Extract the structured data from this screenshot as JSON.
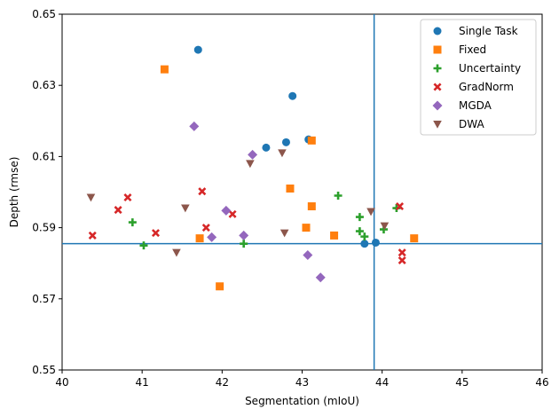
{
  "chart_data": {
    "type": "scatter",
    "title": "",
    "xlabel": "Segmentation (mIoU)",
    "ylabel": "Depth (rmse)",
    "xlim": [
      40,
      46
    ],
    "ylim": [
      0.55,
      0.65
    ],
    "xticks": [
      40,
      41,
      42,
      43,
      44,
      45,
      46
    ],
    "yticks": [
      0.55,
      0.57,
      0.59,
      0.61,
      0.63,
      0.65
    ],
    "xtick_labels": [
      "40",
      "41",
      "42",
      "43",
      "44",
      "45",
      "46"
    ],
    "ytick_labels": [
      "0.55",
      "0.57",
      "0.59",
      "0.61",
      "0.63",
      "0.65"
    ],
    "reference_lines": {
      "x": 43.9,
      "y": 0.5855
    },
    "legend_position": "top-right",
    "series": [
      {
        "name": "Single Task",
        "marker": "circle",
        "color": "#1f77b4",
        "points": [
          [
            41.7,
            0.64
          ],
          [
            42.88,
            0.627
          ],
          [
            42.55,
            0.6125
          ],
          [
            42.8,
            0.614
          ],
          [
            43.08,
            0.6148
          ],
          [
            43.78,
            0.5855
          ],
          [
            43.92,
            0.5858
          ]
        ]
      },
      {
        "name": "Fixed",
        "marker": "square",
        "color": "#ff7f0e",
        "points": [
          [
            41.28,
            0.6345
          ],
          [
            43.12,
            0.6145
          ],
          [
            42.85,
            0.601
          ],
          [
            43.12,
            0.596
          ],
          [
            43.05,
            0.59
          ],
          [
            41.72,
            0.587
          ],
          [
            43.4,
            0.5878
          ],
          [
            44.4,
            0.587
          ],
          [
            41.97,
            0.5735
          ]
        ]
      },
      {
        "name": "Uncertainty",
        "marker": "plus",
        "color": "#2ca02c",
        "points": [
          [
            43.45,
            0.599
          ],
          [
            43.72,
            0.593
          ],
          [
            40.88,
            0.5915
          ],
          [
            43.72,
            0.589
          ],
          [
            43.78,
            0.5875
          ],
          [
            44.02,
            0.5895
          ],
          [
            44.18,
            0.5955
          ],
          [
            41.02,
            0.585
          ],
          [
            42.27,
            0.5855
          ]
        ]
      },
      {
        "name": "GradNorm",
        "marker": "x",
        "color": "#d62728",
        "points": [
          [
            40.38,
            0.5878
          ],
          [
            40.7,
            0.595
          ],
          [
            40.82,
            0.5985
          ],
          [
            41.17,
            0.5885
          ],
          [
            41.75,
            0.6002
          ],
          [
            41.8,
            0.59
          ],
          [
            42.13,
            0.5938
          ],
          [
            44.25,
            0.583
          ],
          [
            44.25,
            0.5808
          ],
          [
            44.22,
            0.596
          ]
        ]
      },
      {
        "name": "MGDA",
        "marker": "diamond",
        "color": "#9467bd",
        "points": [
          [
            41.65,
            0.6185
          ],
          [
            42.38,
            0.6105
          ],
          [
            42.05,
            0.5948
          ],
          [
            41.87,
            0.5873
          ],
          [
            42.27,
            0.5878
          ],
          [
            43.07,
            0.5823
          ],
          [
            43.23,
            0.576
          ]
        ]
      },
      {
        "name": "DWA",
        "marker": "triangle-down",
        "color": "#8c564b",
        "points": [
          [
            40.36,
            0.5985
          ],
          [
            41.54,
            0.5955
          ],
          [
            41.43,
            0.583
          ],
          [
            42.35,
            0.608
          ],
          [
            42.75,
            0.611
          ],
          [
            42.78,
            0.5885
          ],
          [
            43.86,
            0.5945
          ],
          [
            44.03,
            0.5905
          ]
        ]
      }
    ]
  }
}
